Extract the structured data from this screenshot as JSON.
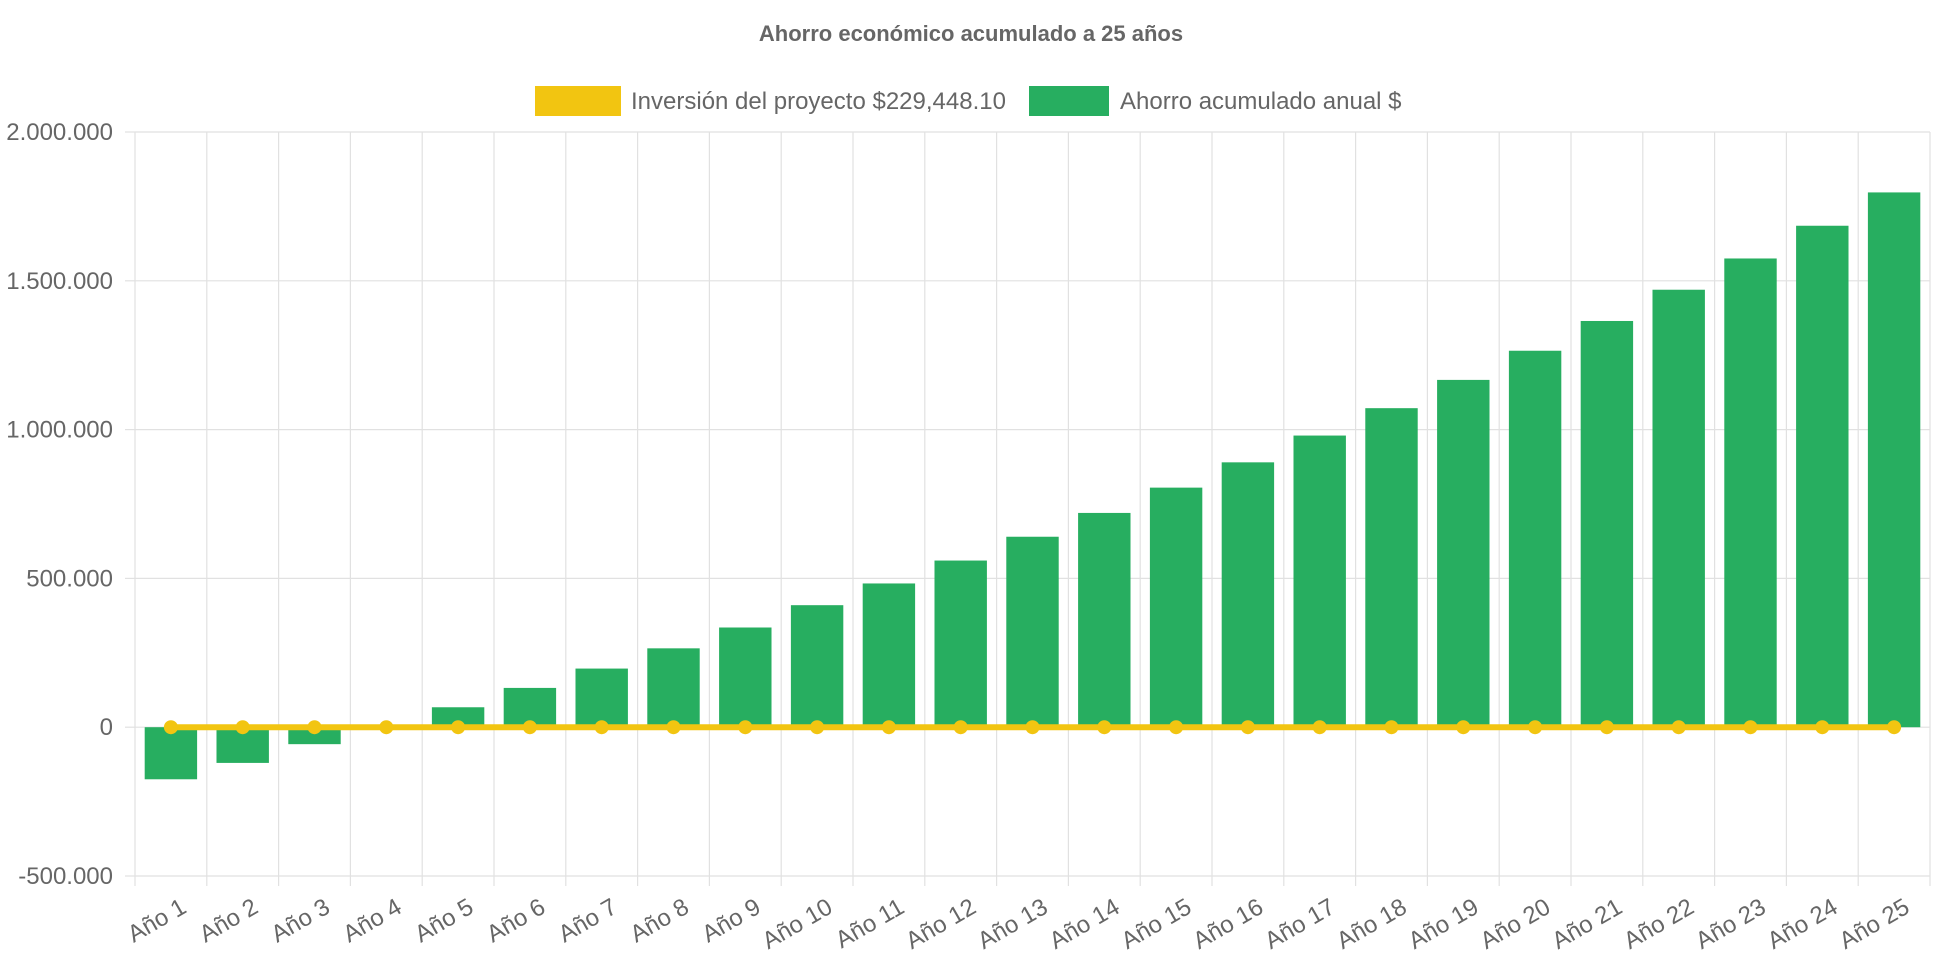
{
  "chart_data": {
    "type": "bar",
    "title": "Ahorro económico acumulado a 25 años",
    "categories": [
      "Año 1",
      "Año 2",
      "Año 3",
      "Año 4",
      "Año 5",
      "Año 6",
      "Año 7",
      "Año 8",
      "Año 9",
      "Año 10",
      "Año 11",
      "Año 12",
      "Año 13",
      "Año 14",
      "Año 15",
      "Año 16",
      "Año 17",
      "Año 18",
      "Año 19",
      "Año 20",
      "Año 21",
      "Año 22",
      "Año 23",
      "Año 24",
      "Año 25"
    ],
    "series": [
      {
        "name": "Inversión del proyecto $229,448.10",
        "type": "line",
        "color": "#f2c511",
        "values": [
          0,
          0,
          0,
          0,
          0,
          0,
          0,
          0,
          0,
          0,
          0,
          0,
          0,
          0,
          0,
          0,
          0,
          0,
          0,
          0,
          0,
          0,
          0,
          0,
          0
        ]
      },
      {
        "name": "Ahorro acumulado anual $",
        "type": "bar",
        "color": "#27ae60",
        "values": [
          -175000,
          -120000,
          -57000,
          -3000,
          67000,
          132000,
          197000,
          265000,
          335000,
          410000,
          483000,
          560000,
          640000,
          720000,
          805000,
          890000,
          980000,
          1072000,
          1167000,
          1265000,
          1365000,
          1470000,
          1575000,
          1685000,
          1797000
        ]
      }
    ],
    "ylim": [
      -500000,
      2000000
    ],
    "yticks": [
      "2.000.000",
      "1.500.000",
      "1.000.000",
      "500.000",
      "0",
      "-500.000"
    ],
    "ytick_values": [
      2000000,
      1500000,
      1000000,
      500000,
      0,
      -500000
    ],
    "legend_position": "top",
    "grid": true,
    "colors": {
      "grid": "#e1e1e1",
      "axis": "#cccccc",
      "text": "#666666",
      "title": "#666666"
    }
  }
}
